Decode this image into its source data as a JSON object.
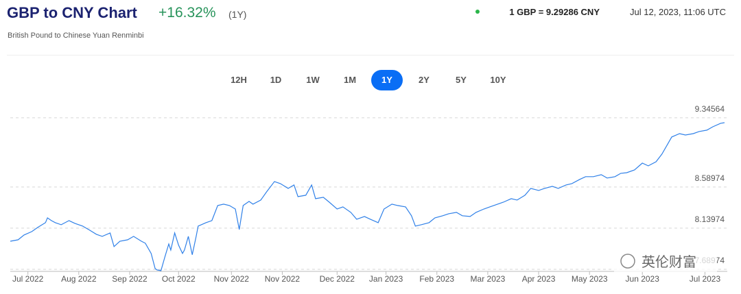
{
  "header": {
    "title": "GBP to CNY Chart",
    "change": "+16.32%",
    "period": "(1Y)",
    "subtitle": "British Pound to Chinese Yuan Renminbi",
    "rate": "1 GBP = 9.29286 CNY",
    "timestamp": "Jul 12, 2023, 11:06 UTC"
  },
  "range_buttons": [
    "12H",
    "1D",
    "1W",
    "1M",
    "1Y",
    "2Y",
    "5Y",
    "10Y"
  ],
  "watermark": "英伦财富",
  "chart_data": {
    "type": "line",
    "color": "#2f80e8",
    "grid": true,
    "x": [
      0,
      4,
      7,
      11,
      14,
      18,
      19,
      21,
      23,
      26,
      30,
      33,
      37,
      40,
      44,
      47,
      51,
      53,
      56,
      60,
      63,
      67,
      69,
      72,
      74,
      75,
      77,
      79,
      81,
      82,
      84,
      86,
      88,
      89,
      91,
      93,
      95,
      96,
      100,
      103,
      106,
      109,
      112,
      115,
      117,
      119,
      122,
      124,
      128,
      131,
      135,
      138,
      142,
      145,
      147,
      151,
      154,
      156,
      160,
      163,
      167,
      170,
      174,
      177,
      181,
      184,
      188,
      191,
      195,
      198,
      202,
      205,
      207,
      210,
      214,
      217,
      221,
      224,
      228,
      231,
      235,
      238,
      242,
      245,
      249,
      252,
      256,
      259,
      263,
      266,
      270,
      273,
      277,
      280,
      284,
      287,
      291,
      294,
      298,
      302,
      305,
      309,
      312,
      315,
      319,
      323,
      326,
      330,
      333,
      336,
      338,
      342,
      345,
      349,
      352,
      356,
      359,
      363,
      365
    ],
    "values": [
      7.997,
      8.012,
      8.065,
      8.102,
      8.147,
      8.2,
      8.252,
      8.222,
      8.2,
      8.177,
      8.222,
      8.192,
      8.162,
      8.125,
      8.072,
      8.05,
      8.087,
      7.938,
      7.997,
      8.012,
      8.05,
      7.997,
      7.975,
      7.863,
      7.698,
      7.683,
      7.675,
      7.825,
      7.967,
      7.9,
      8.087,
      7.953,
      7.863,
      7.9,
      8.05,
      7.848,
      8.05,
      8.162,
      8.2,
      8.222,
      8.387,
      8.402,
      8.387,
      8.349,
      8.125,
      8.387,
      8.432,
      8.402,
      8.447,
      8.537,
      8.649,
      8.627,
      8.574,
      8.612,
      8.484,
      8.499,
      8.612,
      8.462,
      8.477,
      8.424,
      8.349,
      8.372,
      8.312,
      8.237,
      8.267,
      8.237,
      8.2,
      8.349,
      8.402,
      8.387,
      8.372,
      8.275,
      8.162,
      8.177,
      8.2,
      8.252,
      8.275,
      8.297,
      8.312,
      8.275,
      8.267,
      8.312,
      8.349,
      8.372,
      8.402,
      8.424,
      8.462,
      8.447,
      8.499,
      8.574,
      8.552,
      8.574,
      8.597,
      8.574,
      8.612,
      8.627,
      8.672,
      8.702,
      8.702,
      8.724,
      8.687,
      8.702,
      8.739,
      8.746,
      8.776,
      8.851,
      8.821,
      8.866,
      8.949,
      9.061,
      9.136,
      9.173,
      9.158,
      9.173,
      9.196,
      9.211,
      9.248,
      9.286,
      9.293
    ],
    "xlim": [
      0,
      365
    ],
    "xticks": [
      {
        "value": 9,
        "label": "Jul 2022"
      },
      {
        "value": 35,
        "label": "Aug 2022"
      },
      {
        "value": 61,
        "label": "Sep 2022"
      },
      {
        "value": 86,
        "label": "Oct 2022"
      },
      {
        "value": 113,
        "label": "Nov 2022"
      },
      {
        "value": 139,
        "label": "Nov 2022"
      },
      {
        "value": 167,
        "label": "Dec 2022"
      },
      {
        "value": 192,
        "label": "Jan 2023"
      },
      {
        "value": 218,
        "label": "Feb 2023"
      },
      {
        "value": 244,
        "label": "Mar 2023"
      },
      {
        "value": 270,
        "label": "Apr 2023"
      },
      {
        "value": 296,
        "label": "May 2023"
      },
      {
        "value": 323,
        "label": "Jun 2023"
      },
      {
        "value": 355,
        "label": "Jul 2023"
      }
    ],
    "ylim": [
      7.667,
      9.435
    ],
    "yticks": [
      7.68974,
      8.13974,
      8.58974,
      9.34564
    ]
  }
}
